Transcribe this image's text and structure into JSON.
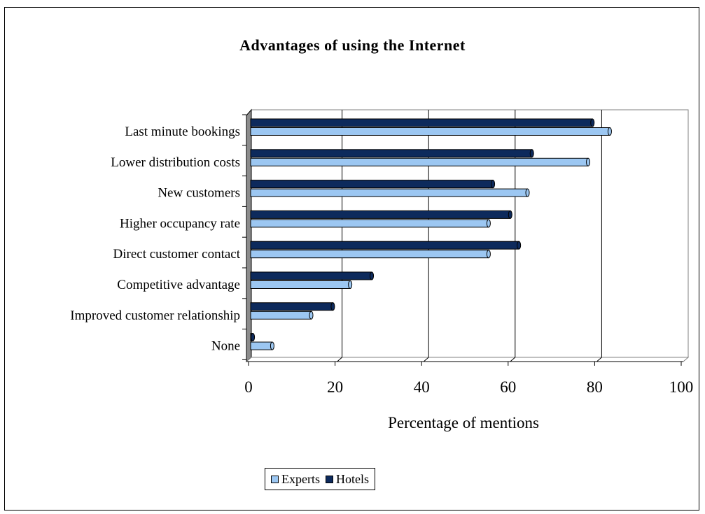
{
  "chart_data": {
    "type": "bar",
    "orientation": "horizontal",
    "title": "Advantages of using the Internet",
    "xlabel": "Percentage of mentions",
    "ylabel": "",
    "xlim": [
      0,
      100
    ],
    "xticks": [
      "0",
      "20",
      "40",
      "60",
      "80",
      "100"
    ],
    "categories": [
      "Last minute bookings",
      "Lower distribution costs",
      "New customers",
      "Higher occupancy rate",
      "Direct customer contact",
      "Competitive advantage",
      "Improved customer relationship",
      "None"
    ],
    "series": [
      {
        "name": "Hotels",
        "color": "#0d2a5c",
        "values": [
          79,
          65,
          56,
          60,
          62,
          28,
          19,
          0.5
        ]
      },
      {
        "name": "Experts",
        "color": "#9cc7f2",
        "values": [
          83,
          78,
          64,
          55,
          55,
          23,
          14,
          5
        ]
      }
    ],
    "grid": "vertical gridlines",
    "legend_position": "bottom"
  }
}
